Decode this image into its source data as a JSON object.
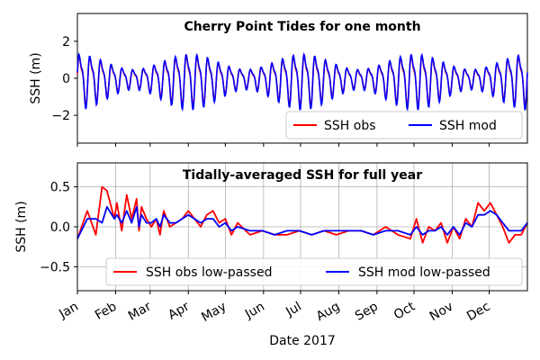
{
  "figure": {
    "xlabel": "Date 2017"
  },
  "chart_data": [
    {
      "type": "line",
      "title": "Cherry Point Tides for one month",
      "ylabel": "SSH (m)",
      "ylim": [
        -3.5,
        3.5
      ],
      "yticks": [
        -2,
        0,
        2
      ],
      "ytick_labels": [
        "−2",
        "0",
        "2"
      ],
      "legend": {
        "placement": "bottom-right",
        "columns": 2
      },
      "series": [
        {
          "name": "SSH obs",
          "color": "#ff0000",
          "amplitude": 1.1,
          "offset": 0.0
        },
        {
          "name": "SSH mod",
          "color": "#0000ff",
          "amplitude": 1.2,
          "offset": 0.0
        }
      ],
      "cycles": 42,
      "grid": false
    },
    {
      "type": "line",
      "title": "Tidally-averaged SSH for full year",
      "ylabel": "SSH (m)",
      "ylim": [
        -0.8,
        0.8
      ],
      "yticks": [
        -0.5,
        0.0,
        0.5
      ],
      "ytick_labels": [
        "−0.5",
        "0.0",
        "0.5"
      ],
      "xtick_labels": [
        "Jan",
        "Feb",
        "Mar",
        "Apr",
        "May",
        "Jun",
        "Jul",
        "Aug",
        "Sep",
        "Oct",
        "Nov",
        "Dec"
      ],
      "xlim_days": [
        0,
        365
      ],
      "legend": {
        "placement": "bottom-center",
        "columns": 2
      },
      "grid": true,
      "series": [
        {
          "name": "SSH obs low-passed",
          "color": "#ff0000",
          "x": [
            0,
            8,
            15,
            20,
            24,
            30,
            32,
            36,
            40,
            44,
            48,
            50,
            52,
            56,
            60,
            64,
            67,
            70,
            75,
            80,
            85,
            90,
            95,
            100,
            105,
            110,
            115,
            120,
            125,
            130,
            140,
            150,
            160,
            170,
            180,
            190,
            200,
            210,
            220,
            230,
            240,
            250,
            260,
            270,
            275,
            280,
            285,
            290,
            295,
            300,
            305,
            310,
            315,
            320,
            325,
            330,
            335,
            340,
            345,
            350,
            355,
            360,
            365
          ],
          "y": [
            -0.15,
            0.2,
            -0.1,
            0.5,
            0.45,
            0.1,
            0.3,
            -0.05,
            0.4,
            0.1,
            0.35,
            -0.05,
            0.25,
            0.1,
            0.0,
            0.1,
            -0.1,
            0.2,
            0.0,
            0.05,
            0.1,
            0.2,
            0.1,
            0.0,
            0.15,
            0.2,
            0.05,
            0.1,
            -0.1,
            0.05,
            -0.1,
            -0.05,
            -0.1,
            -0.1,
            -0.05,
            -0.1,
            -0.05,
            -0.1,
            -0.05,
            -0.05,
            -0.1,
            0.0,
            -0.1,
            -0.15,
            0.1,
            -0.2,
            0.0,
            -0.05,
            0.05,
            -0.2,
            0.0,
            -0.15,
            0.1,
            0.0,
            0.3,
            0.2,
            0.3,
            0.15,
            0.0,
            -0.2,
            -0.1,
            -0.1,
            0.05
          ]
        },
        {
          "name": "SSH mod low-passed",
          "color": "#0000ff",
          "x": [
            0,
            8,
            15,
            20,
            24,
            30,
            32,
            36,
            40,
            44,
            48,
            50,
            52,
            56,
            60,
            64,
            67,
            70,
            75,
            80,
            85,
            90,
            95,
            100,
            105,
            110,
            115,
            120,
            125,
            130,
            140,
            150,
            160,
            170,
            180,
            190,
            200,
            210,
            220,
            230,
            240,
            250,
            260,
            270,
            275,
            280,
            285,
            290,
            295,
            300,
            305,
            310,
            315,
            320,
            325,
            330,
            335,
            340,
            345,
            350,
            355,
            360,
            365
          ],
          "y": [
            -0.15,
            0.1,
            0.1,
            0.05,
            0.25,
            0.1,
            0.15,
            0.05,
            0.2,
            0.05,
            0.25,
            0.0,
            0.15,
            0.05,
            0.05,
            0.1,
            0.0,
            0.15,
            0.05,
            0.05,
            0.1,
            0.15,
            0.1,
            0.05,
            0.1,
            0.1,
            0.0,
            0.05,
            -0.05,
            0.0,
            -0.05,
            -0.05,
            -0.1,
            -0.05,
            -0.05,
            -0.1,
            -0.05,
            -0.05,
            -0.05,
            -0.05,
            -0.1,
            -0.05,
            -0.05,
            -0.1,
            0.0,
            -0.1,
            -0.05,
            -0.05,
            0.0,
            -0.1,
            0.0,
            -0.1,
            0.05,
            0.0,
            0.15,
            0.15,
            0.2,
            0.15,
            0.05,
            -0.05,
            -0.05,
            -0.05,
            0.05
          ]
        }
      ]
    }
  ]
}
